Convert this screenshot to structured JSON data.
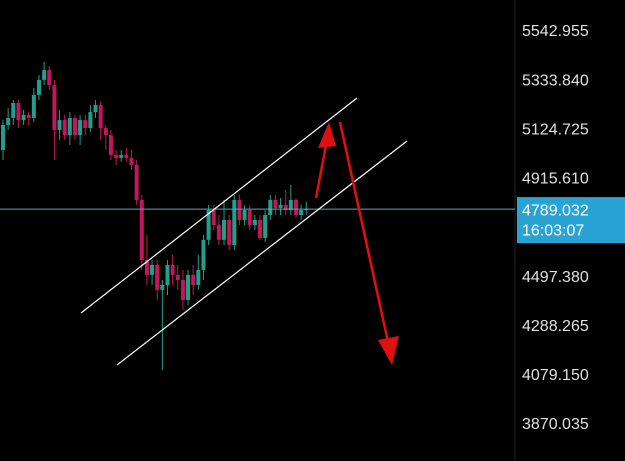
{
  "chart_data": {
    "type": "candlestick",
    "open": [
      5041,
      5147,
      5177,
      5241,
      5168,
      5190,
      5177,
      5275,
      5339,
      5381,
      5317,
      5126,
      5168,
      5104,
      5177,
      5104,
      5168,
      5134,
      5202,
      5232,
      5134,
      5104,
      5019,
      5007,
      5019,
      5007,
      4977,
      4828,
      4572,
      4509,
      4551,
      4445,
      4466,
      4551,
      4509,
      4487,
      4402,
      4509,
      4466,
      4530,
      4658,
      4785,
      4721,
      4658,
      4743,
      4636,
      4828,
      4743,
      4785,
      4721,
      4743,
      4666,
      4764,
      4828,
      4794,
      4807,
      4785,
      4828,
      4764,
      4785
    ],
    "high": [
      5168,
      5219,
      5253,
      5253,
      5211,
      5202,
      5305,
      5360,
      5415,
      5398,
      5339,
      5211,
      5190,
      5202,
      5190,
      5190,
      5190,
      5232,
      5253,
      5245,
      5147,
      5126,
      5041,
      5041,
      5049,
      5041,
      4998,
      4849,
      4679,
      4572,
      4572,
      4487,
      4572,
      4594,
      4551,
      4530,
      4530,
      4551,
      4594,
      4679,
      4807,
      4807,
      4764,
      4828,
      4764,
      4849,
      4849,
      4807,
      4807,
      4764,
      4764,
      4785,
      4849,
      4849,
      4836,
      4870,
      4892,
      4836,
      4807,
      4819
    ],
    "low": [
      4998,
      5126,
      5147,
      5134,
      5147,
      5147,
      5160,
      5253,
      5317,
      5296,
      4998,
      5083,
      5083,
      5062,
      5083,
      5062,
      5104,
      5117,
      5177,
      5083,
      5041,
      4998,
      4977,
      4990,
      4990,
      4956,
      4807,
      4530,
      4466,
      4466,
      4402,
      4104,
      4423,
      4466,
      4445,
      4360,
      4381,
      4423,
      4445,
      4487,
      4636,
      4700,
      4636,
      4636,
      4615,
      4615,
      4721,
      4721,
      4700,
      4700,
      4658,
      4649,
      4743,
      4764,
      4764,
      4764,
      4764,
      4751,
      4743,
      4764
    ],
    "close": [
      5147,
      5177,
      5241,
      5168,
      5190,
      5177,
      5275,
      5339,
      5381,
      5317,
      5126,
      5168,
      5104,
      5177,
      5104,
      5168,
      5134,
      5202,
      5232,
      5134,
      5104,
      5019,
      5007,
      5019,
      5007,
      4977,
      4828,
      4572,
      4509,
      4551,
      4445,
      4466,
      4551,
      4509,
      4487,
      4402,
      4509,
      4466,
      4530,
      4658,
      4785,
      4721,
      4658,
      4743,
      4636,
      4828,
      4743,
      4785,
      4721,
      4743,
      4666,
      4764,
      4828,
      4794,
      4807,
      4785,
      4828,
      4764,
      4785,
      4790
    ],
    "up_color": "#20a08a",
    "down_color": "#c2185b",
    "ylim": [
      3716.6,
      5679.2
    ],
    "yticks": [
      5542.955,
      {
        "value": 5333.84,
        "label": "5333.840"
      },
      5124.725,
      {
        "value": 4915.61,
        "label": "4915.610"
      },
      {
        "value": 4497.38,
        "label": "4497.380"
      },
      4288.265,
      {
        "value": 4079.15,
        "label": "4079.150"
      },
      3870.035
    ],
    "price_line": {
      "value": 4789.032,
      "time": "16:03:07",
      "color": "#5fa8c0"
    }
  }
}
